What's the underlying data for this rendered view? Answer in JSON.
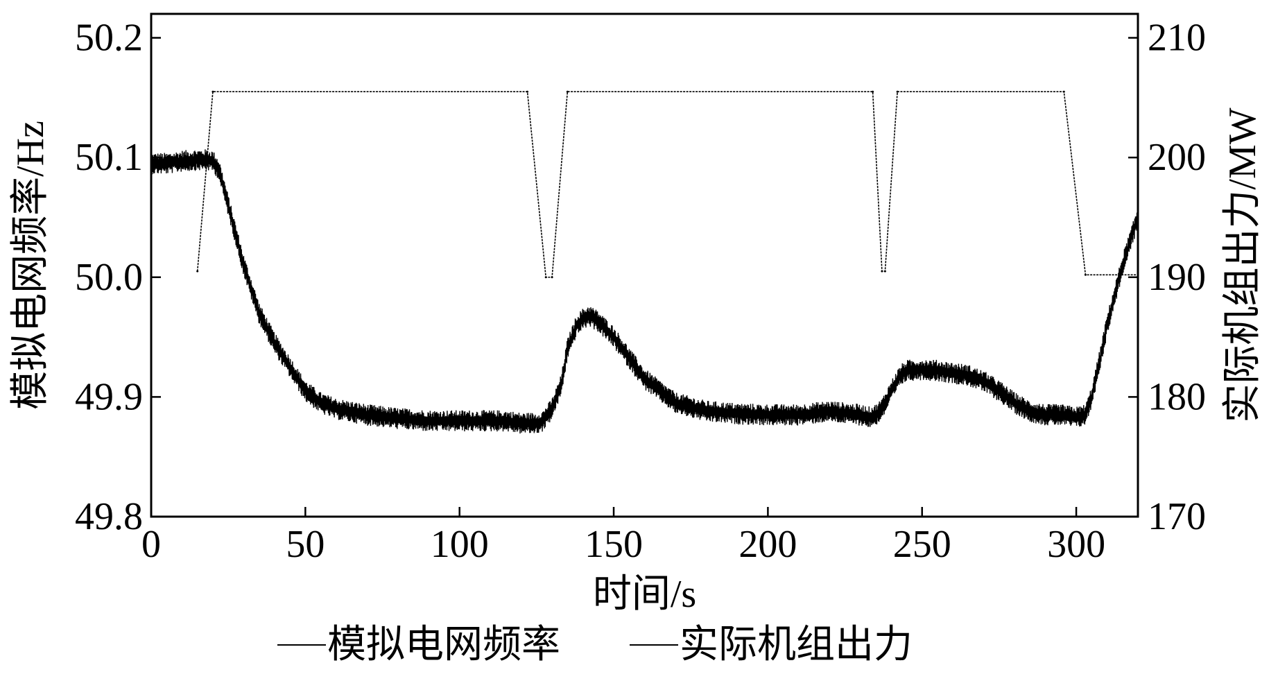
{
  "chart_data": {
    "type": "line",
    "xlabel": "时间/s",
    "ylabel_left": "模拟电网频率/Hz",
    "ylabel_right": "实际机组出力/MW",
    "xlim": [
      0,
      320
    ],
    "ylim_left": [
      49.8,
      50.22
    ],
    "ylim_right": [
      170,
      212
    ],
    "x_ticks": [
      "0",
      "50",
      "100",
      "150",
      "200",
      "250",
      "300"
    ],
    "y_left_ticks": [
      "49.8",
      "49.9",
      "50.0",
      "50.1",
      "50.2"
    ],
    "y_right_ticks": [
      "170",
      "180",
      "190",
      "200",
      "210"
    ],
    "grid": false,
    "legend_position": "bottom",
    "series": [
      {
        "name": "模拟电网频率",
        "axis": "left",
        "color": "#000000",
        "noise_amplitude": 0.009,
        "x": [
          0,
          5,
          10,
          15,
          18,
          20,
          22,
          25,
          30,
          35,
          40,
          45,
          50,
          55,
          60,
          70,
          80,
          90,
          100,
          110,
          115,
          120,
          125,
          127,
          130,
          133,
          135,
          138,
          140,
          142,
          145,
          150,
          160,
          170,
          180,
          190,
          200,
          210,
          220,
          230,
          233,
          235,
          237,
          240,
          243,
          245,
          250,
          255,
          260,
          265,
          270,
          275,
          280,
          285,
          290,
          295,
          300,
          303,
          305,
          308,
          310,
          315,
          320
        ],
        "y": [
          50.095,
          50.095,
          50.097,
          50.098,
          50.098,
          50.097,
          50.09,
          50.06,
          50.01,
          49.97,
          49.945,
          49.925,
          49.905,
          49.895,
          49.89,
          49.885,
          49.882,
          49.88,
          49.88,
          49.88,
          49.88,
          49.878,
          49.878,
          49.88,
          49.89,
          49.91,
          49.94,
          49.96,
          49.965,
          49.968,
          49.963,
          49.95,
          49.915,
          49.895,
          49.888,
          49.886,
          49.885,
          49.885,
          49.888,
          49.885,
          49.883,
          49.885,
          49.89,
          49.905,
          49.918,
          49.922,
          49.923,
          49.922,
          49.92,
          49.918,
          49.913,
          49.905,
          49.895,
          49.888,
          49.885,
          49.885,
          49.883,
          49.885,
          49.9,
          49.935,
          49.96,
          50.01,
          50.05
        ]
      },
      {
        "name": "实际机组出力",
        "axis": "right",
        "color": "#000000",
        "x": [
          15,
          20,
          122,
          128,
          130,
          135,
          234,
          237,
          238,
          242,
          296,
          303,
          320
        ],
        "y": [
          190.5,
          205.5,
          205.5,
          190,
          190,
          205.5,
          205.5,
          190.5,
          190.5,
          205.5,
          205.5,
          190.2,
          190.2
        ]
      }
    ]
  }
}
